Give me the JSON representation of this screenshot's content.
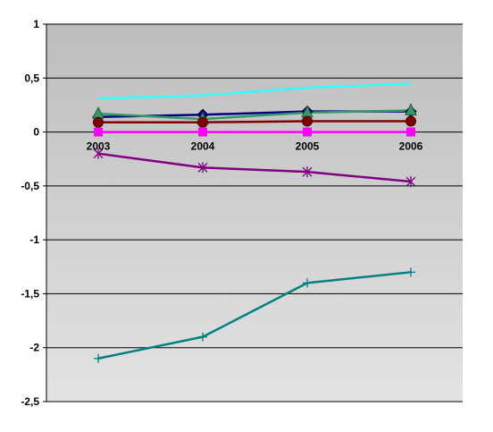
{
  "chart_data": {
    "type": "line",
    "title": "",
    "xlabel": "",
    "ylabel": "",
    "categories": [
      "2003",
      "2004",
      "2005",
      "2006"
    ],
    "ylim": [
      -2.5,
      1
    ],
    "yticks": [
      1,
      0.5,
      0,
      -0.5,
      -1,
      -1.5,
      -2,
      -2.5
    ],
    "ytick_labels": [
      "1",
      "0,5",
      "0",
      "-0,5",
      "-1",
      "-1,5",
      "-2",
      "-2,5"
    ],
    "grid": "horizontal",
    "legend": "none",
    "background": "gradient grey",
    "series": [
      {
        "values": [
          0.31,
          0.34,
          0.41,
          0.45
        ],
        "color": "#33FFFF",
        "marker": "none"
      },
      {
        "values": [
          0.14,
          0.16,
          0.19,
          0.19
        ],
        "color": "#000080",
        "marker": "diamond"
      },
      {
        "values": [
          0.17,
          0.12,
          0.18,
          0.2
        ],
        "color": "#339966",
        "marker": "triangle"
      },
      {
        "values": [
          0.09,
          0.09,
          0.1,
          0.1
        ],
        "color": "#800000",
        "marker": "circle"
      },
      {
        "values": [
          0.0,
          0.0,
          0.0,
          0.0
        ],
        "color": "#FF00FF",
        "marker": "square"
      },
      {
        "values": [
          -0.2,
          -0.33,
          -0.37,
          -0.46
        ],
        "color": "#800080",
        "marker": "star"
      },
      {
        "values": [
          -2.1,
          -1.9,
          -1.4,
          -1.3
        ],
        "color": "#008080",
        "marker": "plus"
      }
    ]
  }
}
